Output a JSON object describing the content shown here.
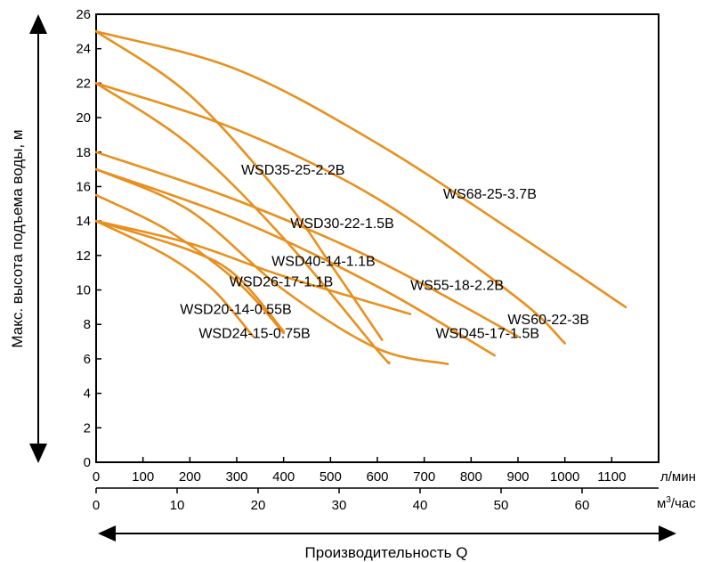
{
  "chart_data": {
    "type": "line",
    "title": "",
    "ylabel": "Макс. высота подъема воды, м",
    "xlabel": "Производительность Q",
    "x_unit_top": "л/мин",
    "x_unit_bottom_base": "м",
    "x_unit_bottom_sup": "3",
    "x_unit_bottom_rest": "/час",
    "xlim": [
      0,
      1200
    ],
    "ylim": [
      0,
      26
    ],
    "x_ticks": [
      "0",
      "100",
      "200",
      "300",
      "400",
      "500",
      "600",
      "700",
      "800",
      "900",
      "1000",
      "1100"
    ],
    "x2_ticks": [
      "0",
      "10",
      "20",
      "30",
      "40",
      "50",
      "60"
    ],
    "y_ticks": [
      "0",
      "2",
      "4",
      "6",
      "8",
      "10",
      "12",
      "14",
      "16",
      "18",
      "20",
      "22",
      "24",
      "26"
    ],
    "grid": false,
    "line_color": "#e8901e",
    "axis_color": "#000000",
    "series": [
      {
        "name": "WS68-25-3.7B",
        "label_x": 840,
        "label_y": 15.3,
        "points": [
          [
            0,
            25
          ],
          [
            300,
            22.8
          ],
          [
            600,
            18.5
          ],
          [
            900,
            13.2
          ],
          [
            1130,
            9
          ]
        ]
      },
      {
        "name": "WS60-22-3B",
        "label_x": 965,
        "label_y": 8.0,
        "points": [
          [
            0,
            22
          ],
          [
            300,
            19.3
          ],
          [
            600,
            15.3
          ],
          [
            900,
            9.5
          ],
          [
            1000,
            6.9
          ]
        ]
      },
      {
        "name": "WSD35-25-2.2B",
        "label_x": 420,
        "label_y": 16.7,
        "points": [
          [
            0,
            25
          ],
          [
            200,
            21.3
          ],
          [
            400,
            15.3
          ],
          [
            500,
            11.5
          ],
          [
            610,
            7.1
          ]
        ]
      },
      {
        "name": "WS55-18-2.2B",
        "label_x": 770,
        "label_y": 10.0,
        "points": [
          [
            0,
            18
          ],
          [
            300,
            15.2
          ],
          [
            600,
            11.7
          ],
          [
            900,
            7.3
          ]
        ]
      },
      {
        "name": "WSD30-22-1.5B",
        "label_x": 525,
        "label_y": 13.6,
        "points": [
          [
            0,
            22
          ],
          [
            200,
            18.4
          ],
          [
            400,
            13
          ],
          [
            600,
            6.5
          ],
          [
            625,
            5.8
          ]
        ]
      },
      {
        "name": "WSD45-17-1.5B",
        "label_x": 835,
        "label_y": 7.2,
        "points": [
          [
            0,
            17
          ],
          [
            300,
            14.1
          ],
          [
            600,
            10.2
          ],
          [
            850,
            6.2
          ]
        ]
      },
      {
        "name": "WSD40-14-1.1B",
        "label_x": 485,
        "label_y": 11.4,
        "points": [
          [
            0,
            14
          ],
          [
            200,
            12.7
          ],
          [
            400,
            10.8
          ],
          [
            670,
            8.6
          ]
        ]
      },
      {
        "name": "WSD26-17-1.1B",
        "label_x": 395,
        "label_y": 10.2,
        "points": [
          [
            0,
            17
          ],
          [
            200,
            14.6
          ],
          [
            400,
            10
          ],
          [
            600,
            6.6
          ],
          [
            750,
            5.7
          ]
        ]
      },
      {
        "name": "WSD20-14-0.55B",
        "label_x": 298,
        "label_y": 8.6,
        "points": [
          [
            0,
            14
          ],
          [
            150,
            12
          ],
          [
            250,
            10
          ],
          [
            335,
            7.3
          ]
        ]
      },
      {
        "name": "WSD24-15-0.75B",
        "label_x": 338,
        "label_y": 7.2,
        "points": [
          [
            0,
            15.5
          ],
          [
            150,
            13.5
          ],
          [
            300,
            10.5
          ],
          [
            400,
            7.5
          ]
        ]
      },
      {
        "name": "",
        "label_x": 0,
        "label_y": 0,
        "points": [
          [
            0,
            14
          ],
          [
            200,
            12.3
          ],
          [
            300,
            10.8
          ],
          [
            400,
            7.6
          ]
        ]
      }
    ]
  }
}
